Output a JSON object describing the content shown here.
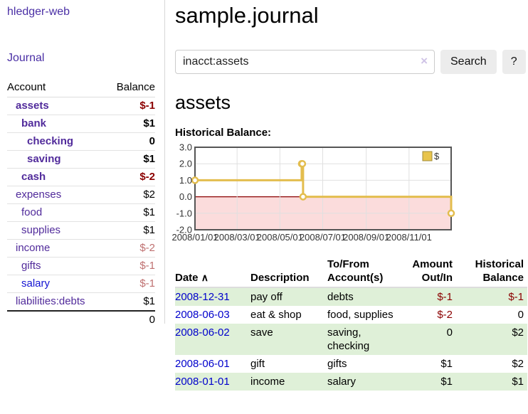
{
  "sidebar": {
    "brand": "hledger-web",
    "nav_journal": "Journal",
    "accounts": {
      "col_account": "Account",
      "col_balance": "Balance",
      "rows": [
        {
          "label": "assets",
          "indent": 1,
          "bold": true,
          "color": "purple",
          "balance": "$-1",
          "balance_color": "red"
        },
        {
          "label": "bank",
          "indent": 2,
          "bold": true,
          "color": "purple",
          "balance": "$1",
          "balance_color": ""
        },
        {
          "label": "checking",
          "indent": 3,
          "bold": true,
          "color": "purple",
          "balance": "0",
          "balance_color": ""
        },
        {
          "label": "saving",
          "indent": 3,
          "bold": true,
          "color": "purple",
          "balance": "$1",
          "balance_color": ""
        },
        {
          "label": "cash",
          "indent": 2,
          "bold": true,
          "color": "purple",
          "balance": "$-2",
          "balance_color": "red"
        },
        {
          "label": "expenses",
          "indent": 1,
          "bold": false,
          "color": "purple",
          "balance": "$2",
          "balance_color": ""
        },
        {
          "label": "food",
          "indent": 2,
          "bold": false,
          "color": "purple",
          "balance": "$1",
          "balance_color": ""
        },
        {
          "label": "supplies",
          "indent": 2,
          "bold": false,
          "color": "purple",
          "balance": "$1",
          "balance_color": ""
        },
        {
          "label": "income",
          "indent": 1,
          "bold": false,
          "color": "purple",
          "balance": "$-2",
          "balance_color": "softred"
        },
        {
          "label": "gifts",
          "indent": 2,
          "bold": false,
          "color": "purple",
          "balance": "$-1",
          "balance_color": "softred"
        },
        {
          "label": "salary",
          "indent": 2,
          "bold": false,
          "color": "blue",
          "balance": "$-1",
          "balance_color": "softred"
        },
        {
          "label": "liabilities:debts",
          "indent": 1,
          "bold": false,
          "color": "purple",
          "balance": "$1",
          "balance_color": ""
        }
      ],
      "total": "0"
    }
  },
  "header": {
    "title": "sample.journal"
  },
  "search": {
    "query": "inacct:assets",
    "clear_icon": "×",
    "button_label": "Search",
    "help_label": "?"
  },
  "account_page": {
    "heading": "assets",
    "chart_label": "Historical Balance:"
  },
  "chart_data": {
    "type": "line",
    "step": true,
    "title": "Historical Balance:",
    "x_range": [
      "2008-01-01",
      "2008-12-31"
    ],
    "ylim": [
      -2,
      3
    ],
    "y_ticks": [
      3.0,
      2.0,
      1.0,
      0.0,
      -1.0,
      -2.0
    ],
    "x_ticks": [
      "2008/01/01",
      "2008/03/01",
      "2008/05/01",
      "2008/07/01",
      "2008/09/01",
      "2008/11/01"
    ],
    "series": [
      {
        "name": "$",
        "color": "#e3bd4e",
        "points": [
          [
            "2008-01-01",
            1
          ],
          [
            "2008-06-01",
            2
          ],
          [
            "2008-06-02",
            2
          ],
          [
            "2008-06-03",
            0
          ],
          [
            "2008-12-31",
            -1
          ]
        ]
      }
    ],
    "legend": {
      "label": "$",
      "position": "top-right",
      "swatch_color": "#e8c44c"
    },
    "grid": true,
    "negative_region_color": "#fbdcdc",
    "zero_line_color": "#8b0000",
    "border_color": "#555555",
    "grid_color": "#e0e0e0"
  },
  "register": {
    "sort_icon": "∧",
    "columns": [
      {
        "label": "Date",
        "align": "left"
      },
      {
        "label": "Description",
        "align": "left"
      },
      {
        "label": "To/From Account(s)",
        "align": "left"
      },
      {
        "label": "Amount Out/In",
        "align": "right"
      },
      {
        "label": "Historical Balance",
        "align": "right"
      }
    ],
    "rows": [
      {
        "date": "2008-12-31",
        "description": "pay off",
        "accounts": "debts",
        "amount": "$-1",
        "amount_neg": true,
        "balance": "$-1",
        "balance_neg": true,
        "highlight": true
      },
      {
        "date": "2008-06-03",
        "description": "eat & shop",
        "accounts": "food, supplies",
        "amount": "$-2",
        "amount_neg": true,
        "balance": "0",
        "balance_neg": false,
        "highlight": false
      },
      {
        "date": "2008-06-02",
        "description": "save",
        "accounts": "saving, checking",
        "amount": "0",
        "amount_neg": false,
        "balance": "$2",
        "balance_neg": false,
        "highlight": true
      },
      {
        "date": "2008-06-01",
        "description": "gift",
        "accounts": "gifts",
        "amount": "$1",
        "amount_neg": false,
        "balance": "$2",
        "balance_neg": false,
        "highlight": false
      },
      {
        "date": "2008-01-01",
        "description": "income",
        "accounts": "salary",
        "amount": "$1",
        "amount_neg": false,
        "balance": "$1",
        "balance_neg": false,
        "highlight": true
      }
    ]
  }
}
